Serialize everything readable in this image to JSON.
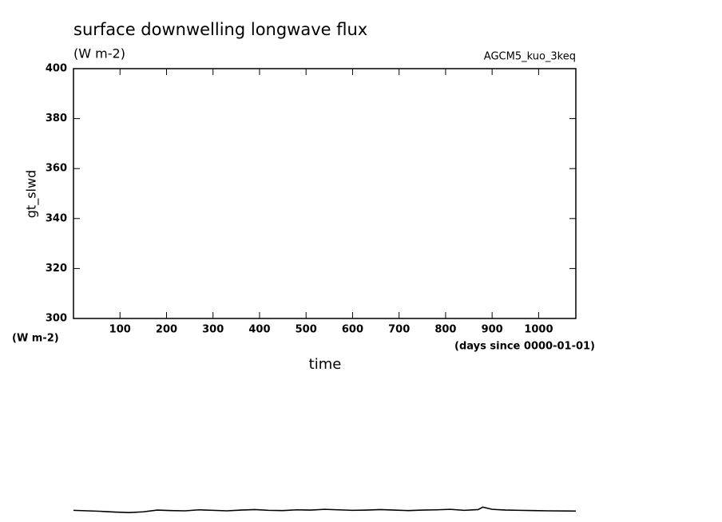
{
  "chart_data": {
    "type": "line",
    "title": "surface downwelling longwave flux",
    "subtitle": "(W m-2)",
    "annotation": "AGCM5_kuo_3keq",
    "y_label": "gt_slwd",
    "y_units": "(W m-2)",
    "x_label": "time",
    "x_units": "(days since 0000-01-01)",
    "x": [
      0,
      30,
      60,
      90,
      120,
      150,
      180,
      210,
      240,
      270,
      300,
      330,
      360,
      390,
      420,
      450,
      480,
      510,
      540,
      570,
      600,
      630,
      660,
      690,
      720,
      750,
      780,
      810,
      840,
      870,
      880,
      900,
      930,
      960,
      990,
      1020,
      1080
    ],
    "series": [
      {
        "color": "#000000",
        "values": [
          223.2,
          223.0,
          222.8,
          222.5,
          222.3,
          222.6,
          223.3,
          223.1,
          223.0,
          223.4,
          223.2,
          223.0,
          223.3,
          223.5,
          223.2,
          223.1,
          223.4,
          223.3,
          223.6,
          223.4,
          223.2,
          223.3,
          223.5,
          223.3,
          223.1,
          223.3,
          223.4,
          223.6,
          223.2,
          223.5,
          224.5,
          223.6,
          223.3,
          223.2,
          223.1,
          223.0,
          222.9
        ]
      }
    ],
    "xlim": [
      0,
      1080
    ],
    "xticks": [
      100,
      200,
      300,
      400,
      500,
      600,
      700,
      800,
      900,
      1000
    ],
    "ylim": [
      300,
      400
    ],
    "yticks": [
      300,
      320,
      340,
      360,
      380,
      400
    ]
  }
}
